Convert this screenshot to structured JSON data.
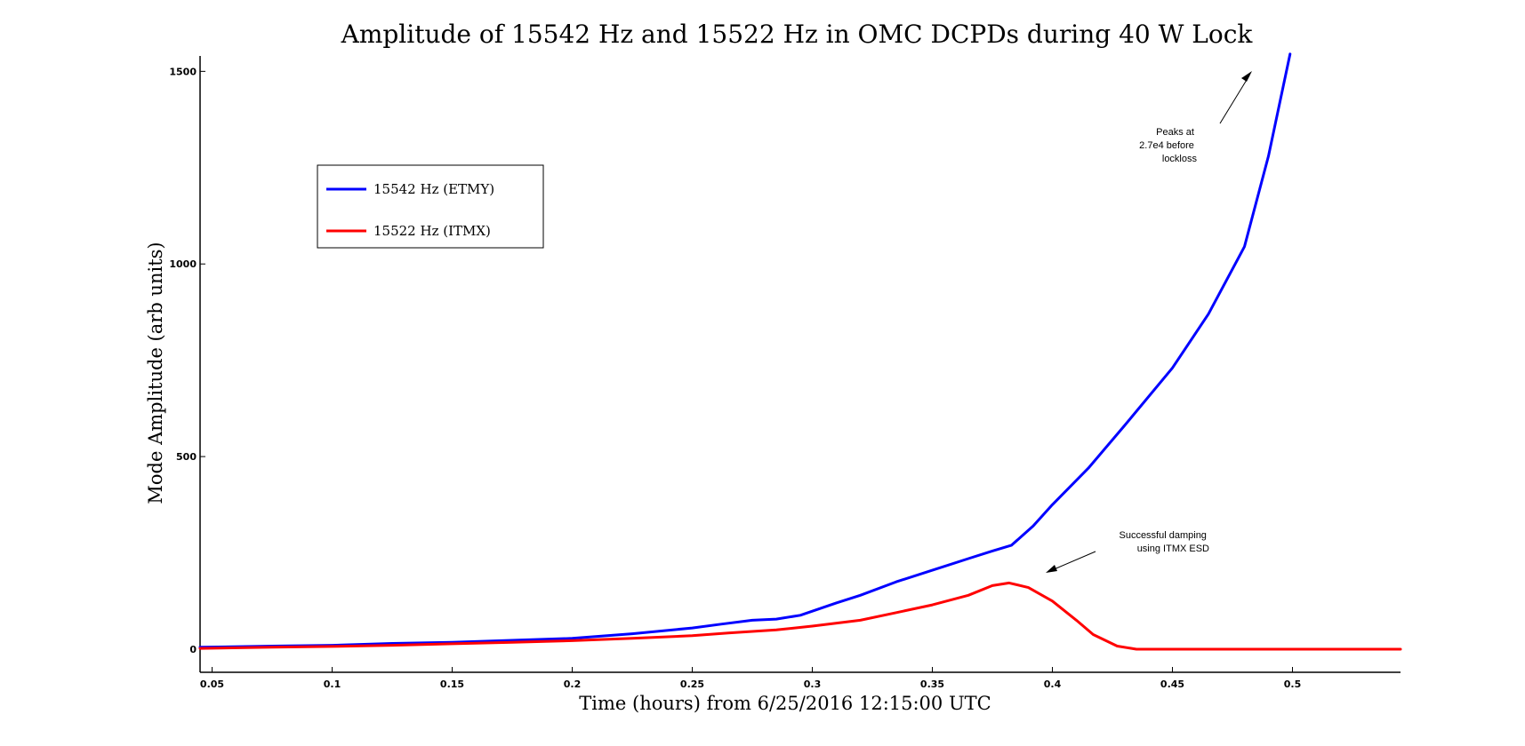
{
  "chart_data": {
    "type": "line",
    "title": "Amplitude of 15542 Hz and 15522 Hz in OMC DCPDs during 40 W Lock",
    "xlabel": "Time (hours) from 6/25/2016 12:15:00 UTC",
    "ylabel": "Mode Amplitude (arb units)",
    "xlim": [
      0.045,
      0.545
    ],
    "ylim": [
      -60,
      1540
    ],
    "x_ticks": [
      {
        "value": 0.05,
        "label": "0.05"
      },
      {
        "value": 0.1,
        "label": "0.1"
      },
      {
        "value": 0.15,
        "label": "0.15"
      },
      {
        "value": 0.2,
        "label": "0.2"
      },
      {
        "value": 0.25,
        "label": "0.25"
      },
      {
        "value": 0.3,
        "label": "0.3"
      },
      {
        "value": 0.35,
        "label": "0.35"
      },
      {
        "value": 0.4,
        "label": "0.4"
      },
      {
        "value": 0.45,
        "label": "0.45"
      },
      {
        "value": 0.5,
        "label": "0.5"
      }
    ],
    "y_ticks": [
      {
        "value": 0,
        "label": "0"
      },
      {
        "value": 500,
        "label": "500"
      },
      {
        "value": 1000,
        "label": "1000"
      },
      {
        "value": 1500,
        "label": "1500"
      }
    ],
    "grid": false,
    "legend_position": "upper-left",
    "series": [
      {
        "name": "15542 Hz (ETMY)",
        "color": "#0000ff",
        "x": [
          0.045,
          0.075,
          0.1,
          0.125,
          0.15,
          0.175,
          0.2,
          0.225,
          0.25,
          0.262,
          0.275,
          0.285,
          0.295,
          0.31,
          0.32,
          0.335,
          0.35,
          0.365,
          0.375,
          0.383,
          0.392,
          0.4,
          0.415,
          0.43,
          0.45,
          0.465,
          0.48,
          0.49,
          0.499
        ],
        "values": [
          5,
          8,
          10,
          15,
          18,
          23,
          28,
          40,
          55,
          65,
          75,
          78,
          88,
          120,
          140,
          175,
          205,
          235,
          255,
          270,
          320,
          375,
          470,
          580,
          730,
          870,
          1045,
          1280,
          1545
        ]
      },
      {
        "name": "15522 Hz (ITMX)",
        "color": "#ff0000",
        "x": [
          0.045,
          0.075,
          0.1,
          0.125,
          0.15,
          0.175,
          0.2,
          0.225,
          0.25,
          0.265,
          0.285,
          0.3,
          0.32,
          0.335,
          0.35,
          0.365,
          0.375,
          0.382,
          0.39,
          0.4,
          0.41,
          0.417,
          0.427,
          0.435,
          0.45,
          0.5,
          0.545
        ],
        "values": [
          2,
          5,
          7,
          10,
          14,
          18,
          22,
          28,
          35,
          42,
          50,
          60,
          75,
          95,
          115,
          140,
          165,
          172,
          160,
          125,
          75,
          38,
          8,
          0,
          0,
          0,
          0
        ]
      }
    ],
    "annotations": [
      {
        "lines": [
          "Peaks at",
          "2.7e4 before",
          "lockloss"
        ]
      },
      {
        "lines": [
          "Successful damping",
          "using ITMX ESD"
        ]
      }
    ]
  }
}
